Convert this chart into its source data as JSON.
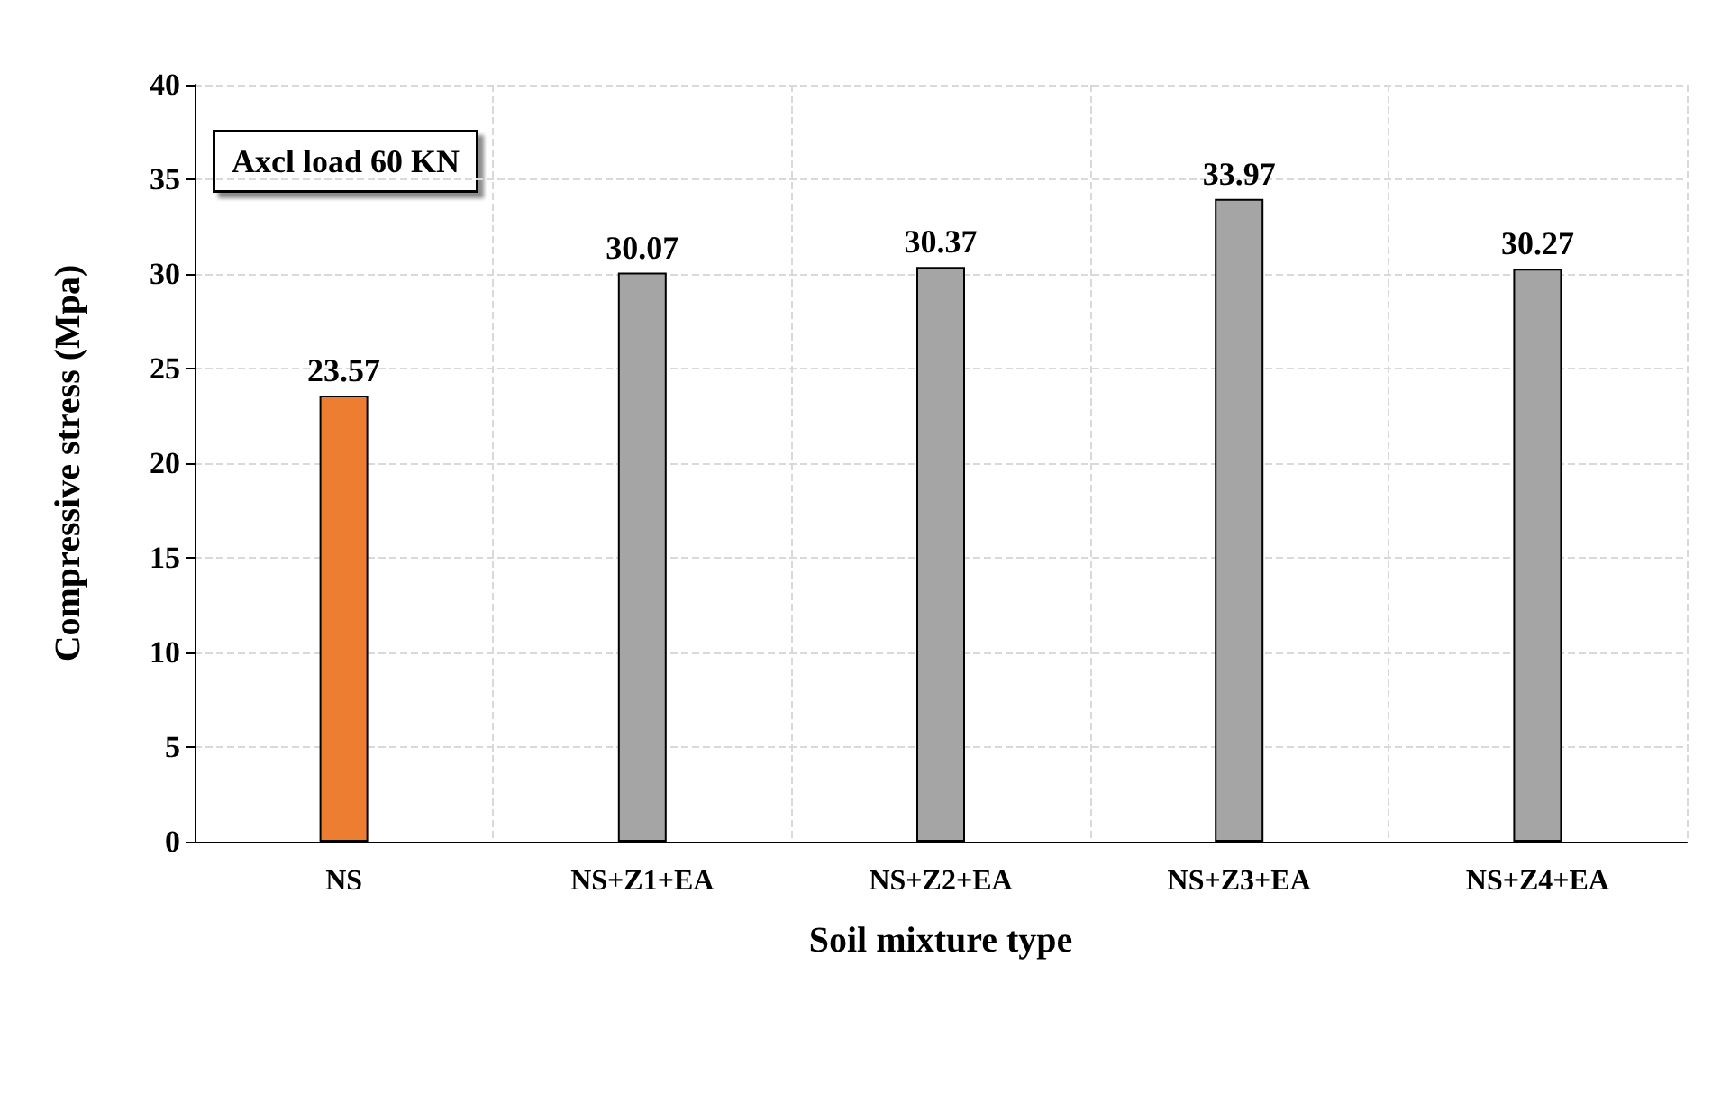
{
  "chart_data": {
    "type": "bar",
    "xlabel": "Soil mixture type",
    "ylabel": "Compressive stress (Mpa)",
    "categories": [
      "NS",
      "NS+Z1+EA",
      "NS+Z2+EA",
      "NS+Z3+EA",
      "NS+Z4+EA"
    ],
    "values": [
      23.57,
      30.07,
      30.37,
      33.97,
      30.27
    ],
    "colors": [
      "#ed7d31",
      "#a5a5a5",
      "#a5a5a5",
      "#a5a5a5",
      "#a5a5a5"
    ],
    "ylim": [
      0,
      40
    ],
    "yticks": [
      0,
      5,
      10,
      15,
      20,
      25,
      30,
      35,
      40
    ],
    "grid": true,
    "data_labels": true,
    "annotations": [
      "Axcl load 60 KN"
    ]
  }
}
